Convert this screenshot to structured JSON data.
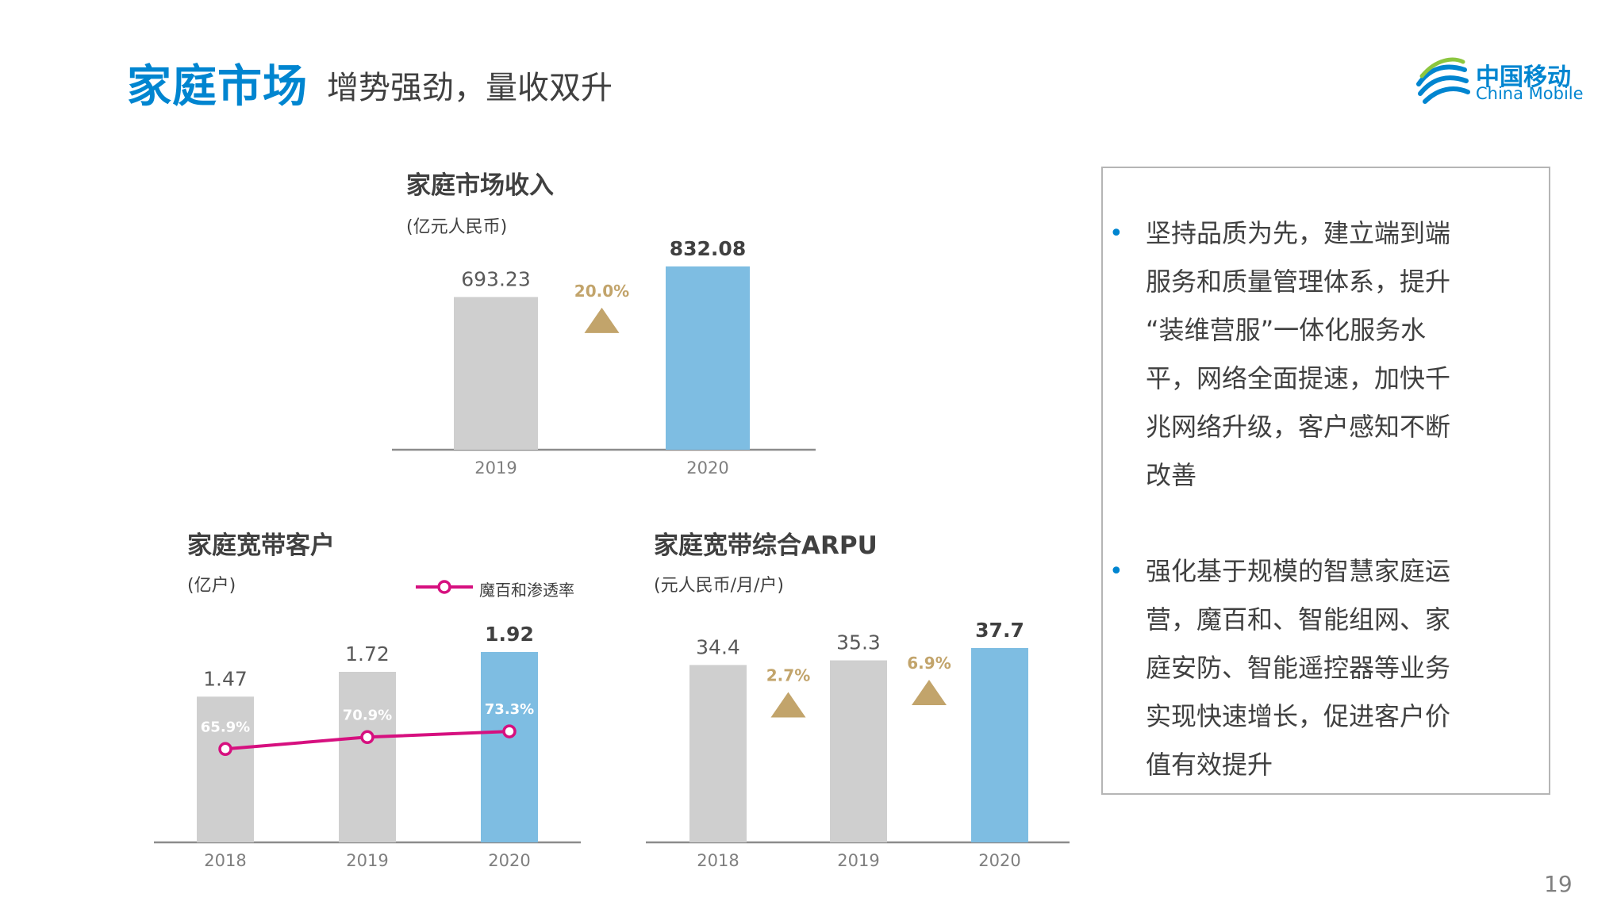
{
  "header": {
    "title": "家庭市场",
    "subtitle": "增势强劲，量收双升",
    "logo_cn": "中国移动",
    "logo_en": "China Mobile"
  },
  "colors": {
    "brand_blue": "#0085d0",
    "bar_gray": "#cfcfcf",
    "bar_blue": "#7ebde2",
    "growth_gold": "#c2a46b",
    "line_magenta": "#d6107f"
  },
  "chart_data": [
    {
      "type": "bar",
      "title": "家庭市场收入",
      "unit": "(亿元人民币)",
      "categories": [
        "2019",
        "2020"
      ],
      "values": [
        693.23,
        832.08
      ],
      "value_labels": [
        "693.23",
        "832.08"
      ],
      "growth": [
        {
          "label": "20.0%",
          "between": [
            0,
            1
          ]
        }
      ],
      "ylim": [
        0,
        900
      ]
    },
    {
      "type": "bar",
      "title": "家庭宽带客户",
      "unit": "(亿户)",
      "categories": [
        "2018",
        "2019",
        "2020"
      ],
      "values": [
        1.47,
        1.72,
        1.92
      ],
      "value_labels": [
        "1.47",
        "1.72",
        "1.92"
      ],
      "ylim": [
        0,
        2.0
      ],
      "line_series": {
        "name": "魔百和渗透率",
        "values": [
          65.9,
          70.9,
          73.3
        ],
        "labels": [
          "65.9%",
          "70.9%",
          "73.3%"
        ]
      }
    },
    {
      "type": "bar",
      "title": "家庭宽带综合ARPU",
      "unit": "(元人民币/月/户)",
      "categories": [
        "2018",
        "2019",
        "2020"
      ],
      "values": [
        34.4,
        35.3,
        37.7
      ],
      "value_labels": [
        "34.4",
        "35.3",
        "37.7"
      ],
      "growth": [
        {
          "label": "2.7%",
          "between": [
            0,
            1
          ]
        },
        {
          "label": "6.9%",
          "between": [
            1,
            2
          ]
        }
      ],
      "ylim": [
        0,
        40
      ]
    }
  ],
  "bullets": [
    "坚持品质为先，建立端到端服务和质量管理体系，提升“装维营服”一体化服务水平，网络全面提速，加快千兆网络升级，客户感知不断改善",
    "强化基于规模的智慧家庭运营，魔百和、智能组网、家庭安防、智能遥控器等业务实现快速增长，促进客户价值有效提升"
  ],
  "bullet_lines": [
    [
      "坚持品质为先，建立端到端",
      "服务和质量管理体系，提升",
      "“装维营服”一体化服务水",
      "平，网络全面提速，加快千",
      "兆网络升级，客户感知不断",
      "改善"
    ],
    [
      "强化基于规模的智慧家庭运",
      "营，魔百和、智能组网、家",
      "庭安防、智能遥控器等业务",
      "实现快速增长，促进客户价",
      "值有效提升"
    ]
  ],
  "page_number": "19"
}
